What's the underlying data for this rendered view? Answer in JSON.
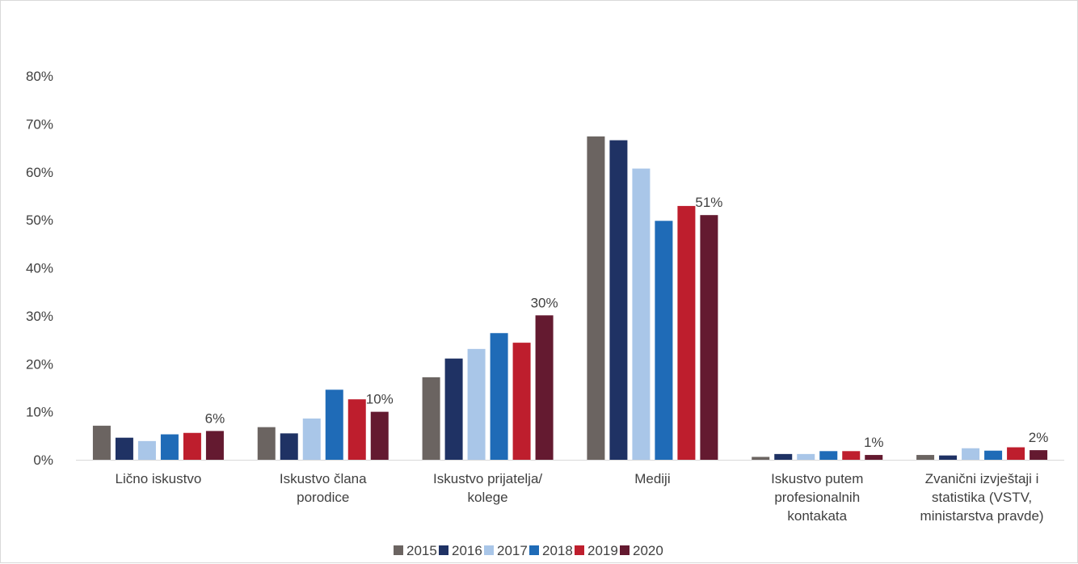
{
  "chart_data": {
    "type": "bar",
    "categories": [
      [
        "Lično iskustvo"
      ],
      [
        "Iskustvo člana",
        "porodice"
      ],
      [
        "Iskustvo prijatelja/",
        "kolege"
      ],
      [
        "Mediji"
      ],
      [
        "Iskustvo putem",
        "profesionalnih",
        "kontakata"
      ],
      [
        "Zvanični izvještaji i",
        "statistika (VSTV,",
        "ministarstva pravde)"
      ]
    ],
    "series": [
      {
        "name": "2015",
        "color": "#6b6461",
        "values": [
          7.1,
          6.8,
          17.2,
          67.4,
          0.6,
          1.0
        ]
      },
      {
        "name": "2016",
        "color": "#1f3264",
        "values": [
          4.6,
          5.5,
          21.1,
          66.6,
          1.2,
          0.9
        ]
      },
      {
        "name": "2017",
        "color": "#a9c6e8",
        "values": [
          3.9,
          8.6,
          23.1,
          60.7,
          1.2,
          2.4
        ]
      },
      {
        "name": "2018",
        "color": "#1f6bb7",
        "values": [
          5.3,
          14.6,
          26.4,
          49.8,
          1.8,
          1.9
        ]
      },
      {
        "name": "2019",
        "color": "#be1e2d",
        "values": [
          5.6,
          12.6,
          24.4,
          52.9,
          1.8,
          2.6
        ]
      },
      {
        "name": "2020",
        "color": "#641a30",
        "values": [
          6.0,
          10.0,
          30.1,
          51.0,
          1.0,
          2.0
        ]
      }
    ],
    "data_labels": [
      {
        "category": 0,
        "series": 5,
        "text": "6%"
      },
      {
        "category": 1,
        "series": 5,
        "text": "10%"
      },
      {
        "category": 2,
        "series": 5,
        "text": "30%"
      },
      {
        "category": 3,
        "series": 5,
        "text": "51%"
      },
      {
        "category": 4,
        "series": 5,
        "text": "1%"
      },
      {
        "category": 5,
        "series": 5,
        "text": "2%"
      }
    ],
    "y_ticks": [
      "0%",
      "10%",
      "20%",
      "30%",
      "40%",
      "50%",
      "60%",
      "70%",
      "80%"
    ],
    "ylim": [
      0,
      80
    ],
    "grid": false,
    "legend_position": "bottom",
    "title": "",
    "xlabel": "",
    "ylabel": ""
  }
}
